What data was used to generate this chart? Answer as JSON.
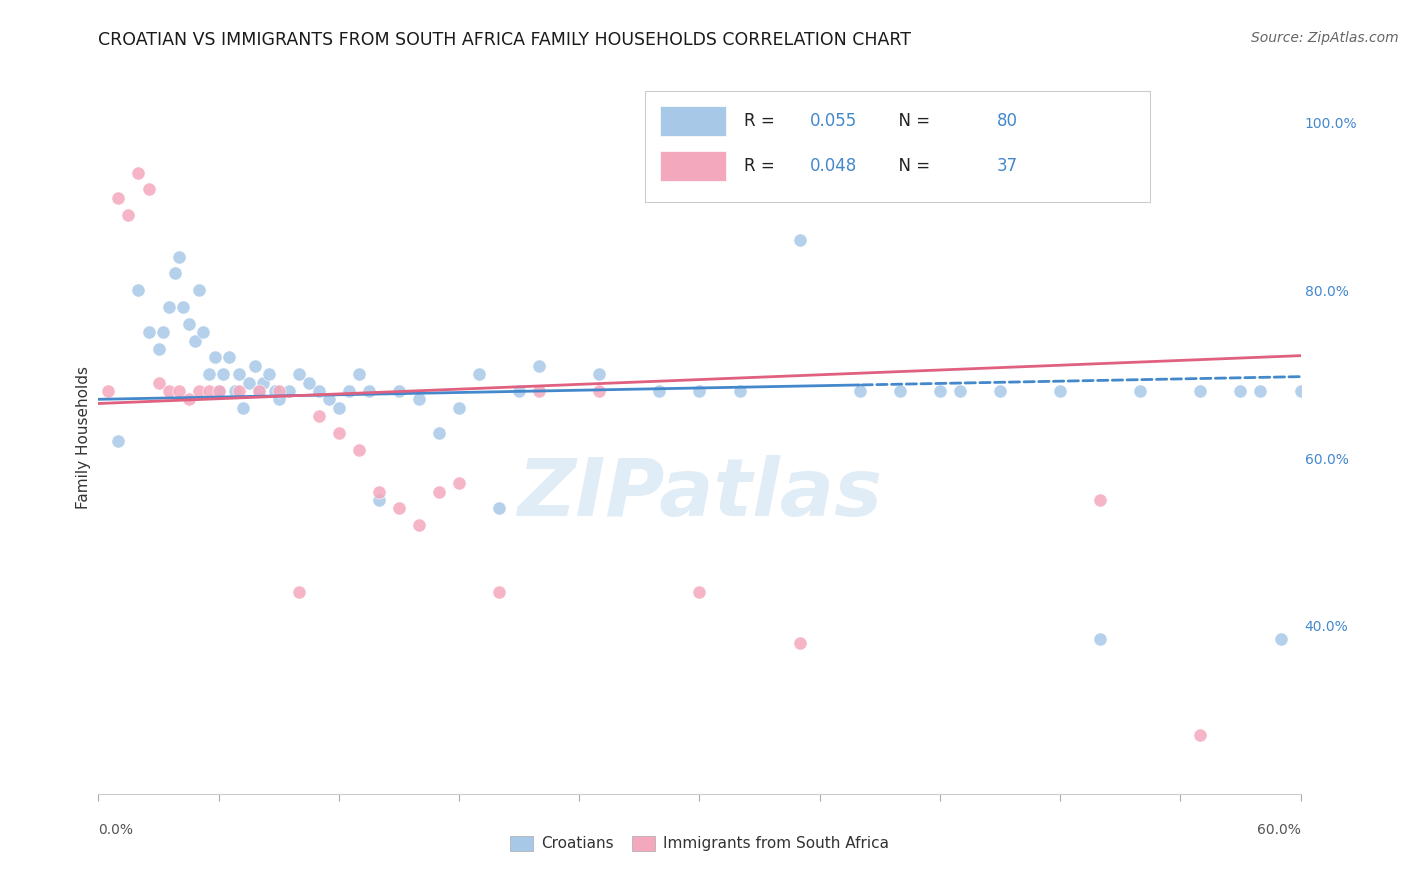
{
  "title": "CROATIAN VS IMMIGRANTS FROM SOUTH AFRICA FAMILY HOUSEHOLDS CORRELATION CHART",
  "source": "Source: ZipAtlas.com",
  "ylabel": "Family Households",
  "right_ytick_vals": [
    40.0,
    60.0,
    80.0,
    100.0
  ],
  "right_ytick_labels": [
    "40.0%",
    "60.0%",
    "80.0%",
    "100.0%"
  ],
  "blue_R": "0.055",
  "blue_N": "80",
  "pink_R": "0.048",
  "pink_N": "37",
  "blue_color": "#a8c8e8",
  "pink_color": "#f4a8be",
  "blue_line_color": "#4488cc",
  "pink_line_color": "#e06080",
  "legend_label_blue": "Croatians",
  "legend_label_pink": "Immigrants from South Africa",
  "background_color": "#ffffff",
  "grid_color": "#dddddd",
  "watermark_text": "ZIPatlas",
  "watermark_color": "#cce0f0",
  "xmin": 0.0,
  "xmax": 60.0,
  "ymin": 20.0,
  "ymax": 105.0,
  "blue_solid_end": 38.0,
  "blue_scatter_x": [
    1.0,
    2.0,
    2.5,
    3.0,
    3.2,
    3.5,
    3.8,
    4.0,
    4.2,
    4.5,
    4.8,
    5.0,
    5.2,
    5.5,
    5.8,
    6.0,
    6.2,
    6.5,
    6.8,
    7.0,
    7.2,
    7.5,
    7.8,
    8.0,
    8.2,
    8.5,
    8.8,
    9.0,
    9.5,
    10.0,
    10.5,
    11.0,
    11.5,
    12.0,
    12.5,
    13.0,
    13.5,
    14.0,
    15.0,
    16.0,
    17.0,
    18.0,
    19.0,
    20.0,
    21.0,
    22.0,
    25.0,
    28.0,
    30.0,
    32.0,
    35.0,
    38.0,
    40.0,
    42.0,
    43.0,
    45.0,
    48.0,
    50.0,
    52.0,
    55.0,
    57.0,
    58.0,
    59.0,
    60.0
  ],
  "blue_scatter_y": [
    62.0,
    80.0,
    75.0,
    73.0,
    75.0,
    78.0,
    82.0,
    84.0,
    78.0,
    76.0,
    74.0,
    80.0,
    75.0,
    70.0,
    72.0,
    68.0,
    70.0,
    72.0,
    68.0,
    70.0,
    66.0,
    69.0,
    71.0,
    68.0,
    69.0,
    70.0,
    68.0,
    67.0,
    68.0,
    70.0,
    69.0,
    68.0,
    67.0,
    66.0,
    68.0,
    70.0,
    68.0,
    55.0,
    68.0,
    67.0,
    63.0,
    66.0,
    70.0,
    54.0,
    68.0,
    71.0,
    70.0,
    68.0,
    68.0,
    68.0,
    86.0,
    68.0,
    68.0,
    68.0,
    68.0,
    68.0,
    68.0,
    38.5,
    68.0,
    68.0,
    68.0,
    68.0,
    38.5,
    68.0
  ],
  "pink_scatter_x": [
    0.5,
    1.0,
    1.5,
    2.0,
    2.5,
    3.0,
    3.5,
    4.0,
    4.5,
    5.0,
    5.5,
    6.0,
    7.0,
    8.0,
    9.0,
    10.0,
    11.0,
    12.0,
    13.0,
    14.0,
    15.0,
    16.0,
    17.0,
    18.0,
    20.0,
    22.0,
    25.0,
    30.0,
    35.0,
    50.0,
    55.0
  ],
  "pink_scatter_y": [
    68.0,
    91.0,
    89.0,
    94.0,
    92.0,
    69.0,
    68.0,
    68.0,
    67.0,
    68.0,
    68.0,
    68.0,
    68.0,
    68.0,
    68.0,
    44.0,
    65.0,
    63.0,
    61.0,
    56.0,
    54.0,
    52.0,
    56.0,
    57.0,
    44.0,
    68.0,
    68.0,
    44.0,
    38.0,
    55.0,
    27.0
  ],
  "title_fontsize": 12.5,
  "source_fontsize": 10,
  "ylabel_fontsize": 11,
  "tick_fontsize": 10,
  "legend_fontsize": 12
}
